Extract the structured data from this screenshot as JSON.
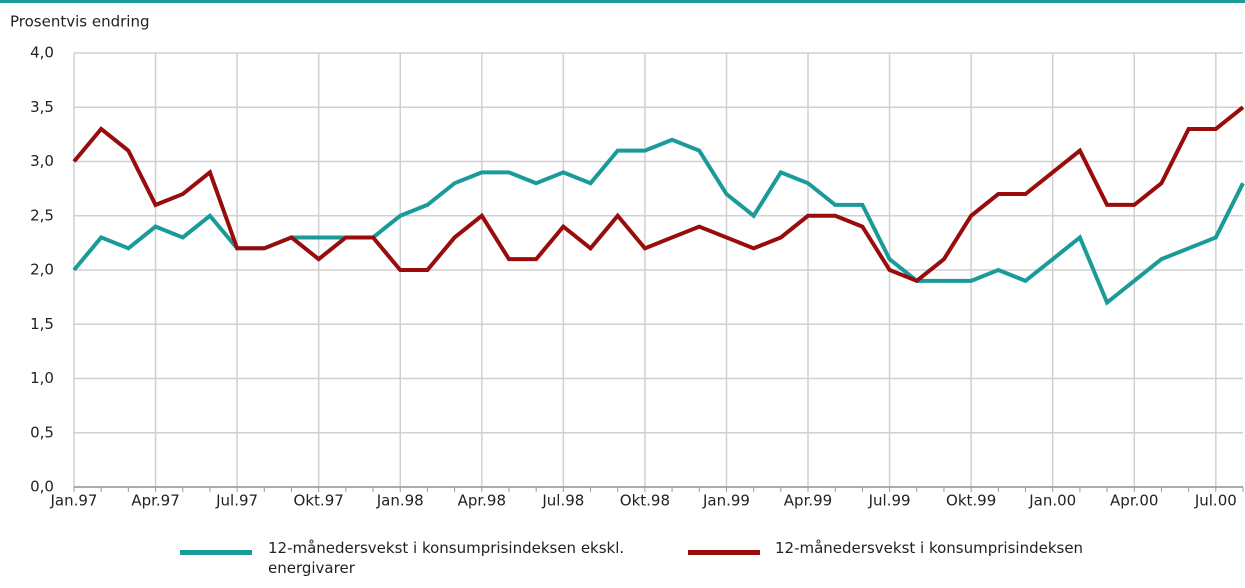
{
  "chart_data": {
    "type": "line",
    "y_axis_label": "Prosentvis endring",
    "categories": [
      "Jan.97",
      null,
      null,
      "Apr.97",
      null,
      null,
      "Jul.97",
      null,
      null,
      "Okt.97",
      null,
      null,
      "Jan.98",
      null,
      null,
      "Apr.98",
      null,
      null,
      "Jul.98",
      null,
      null,
      "Okt.98",
      null,
      null,
      "Jan.99",
      null,
      null,
      "Apr.99",
      null,
      null,
      "Jul.99",
      null,
      null,
      "Okt.99",
      null,
      null,
      "Jan.00",
      null,
      null,
      "Apr.00",
      null,
      null,
      "Jul.00",
      null
    ],
    "series": [
      {
        "name": "12-månedersvekst i konsumprisindeksen ekskl. energivarer",
        "color": "#1b9a9a",
        "values": [
          2.0,
          2.3,
          2.2,
          2.4,
          2.3,
          2.5,
          2.2,
          2.2,
          2.3,
          2.3,
          2.3,
          2.3,
          2.5,
          2.6,
          2.8,
          2.9,
          2.9,
          2.8,
          2.9,
          2.8,
          3.1,
          3.1,
          3.2,
          3.1,
          2.7,
          2.5,
          2.9,
          2.8,
          2.6,
          2.6,
          2.1,
          1.9,
          1.9,
          1.9,
          2.0,
          1.9,
          2.1,
          2.3,
          1.7,
          1.9,
          2.1,
          2.2,
          2.3,
          2.8
        ]
      },
      {
        "name": "12-månedersvekst i konsumprisindeksen",
        "color": "#990c0c",
        "values": [
          3.0,
          3.3,
          3.1,
          2.6,
          2.7,
          2.9,
          2.2,
          2.2,
          2.3,
          2.1,
          2.3,
          2.3,
          2.0,
          2.0,
          2.3,
          2.5,
          2.1,
          2.1,
          2.4,
          2.2,
          2.5,
          2.2,
          2.3,
          2.4,
          2.3,
          2.2,
          2.3,
          2.5,
          2.5,
          2.4,
          2.0,
          1.9,
          2.1,
          2.5,
          2.7,
          2.7,
          2.9,
          3.1,
          2.6,
          2.6,
          2.8,
          3.3,
          3.3,
          3.5
        ]
      }
    ],
    "ylim": [
      0,
      4
    ],
    "yticks": [
      {
        "value": 0,
        "label": "0,0"
      },
      {
        "value": 0.5,
        "label": "0,5"
      },
      {
        "value": 1,
        "label": "1,0"
      },
      {
        "value": 1.5,
        "label": "1,5"
      },
      {
        "value": 2,
        "label": "2,0"
      },
      {
        "value": 2.5,
        "label": "2,5"
      },
      {
        "value": 3,
        "label": "3,0"
      },
      {
        "value": 3.5,
        "label": "3,5"
      },
      {
        "value": 4,
        "label": "4,0"
      }
    ],
    "grid": true
  }
}
